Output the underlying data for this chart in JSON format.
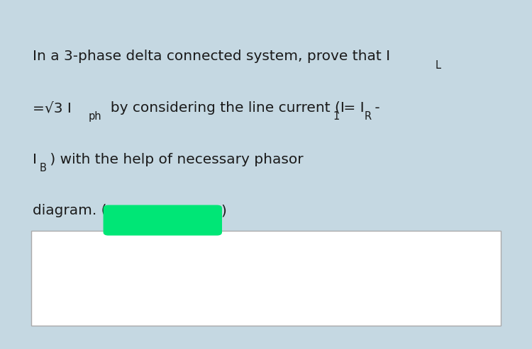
{
  "bg_color": "#ddeef5",
  "outer_bg": "#c5d8e2",
  "highlight_color": "#00e676",
  "box_bg": "#ffffff",
  "box_border": "#aaaaaa",
  "font_size": 14.5,
  "sub_font_size": 10.5,
  "font_color": "#1a1a1a",
  "line1_text": "In a 3-phase delta connected system, prove that I",
  "line1_sub": "L",
  "line2_pre": "=√3 I",
  "line2_sub": "ph",
  "line2_rest": "  by considering the line current (I",
  "line2_sub2": "1",
  "line2_rest2": " = I",
  "line2_sub3": "R",
  "line2_rest3": " -",
  "line3_pre": "I",
  "line3_sub": "B",
  "line3_rest": " ) with the help of necessary phasor",
  "line4_pre": "diagram. (",
  "line4_post": ")",
  "figwidth": 7.5,
  "figheight": 4.93,
  "dpi": 100
}
